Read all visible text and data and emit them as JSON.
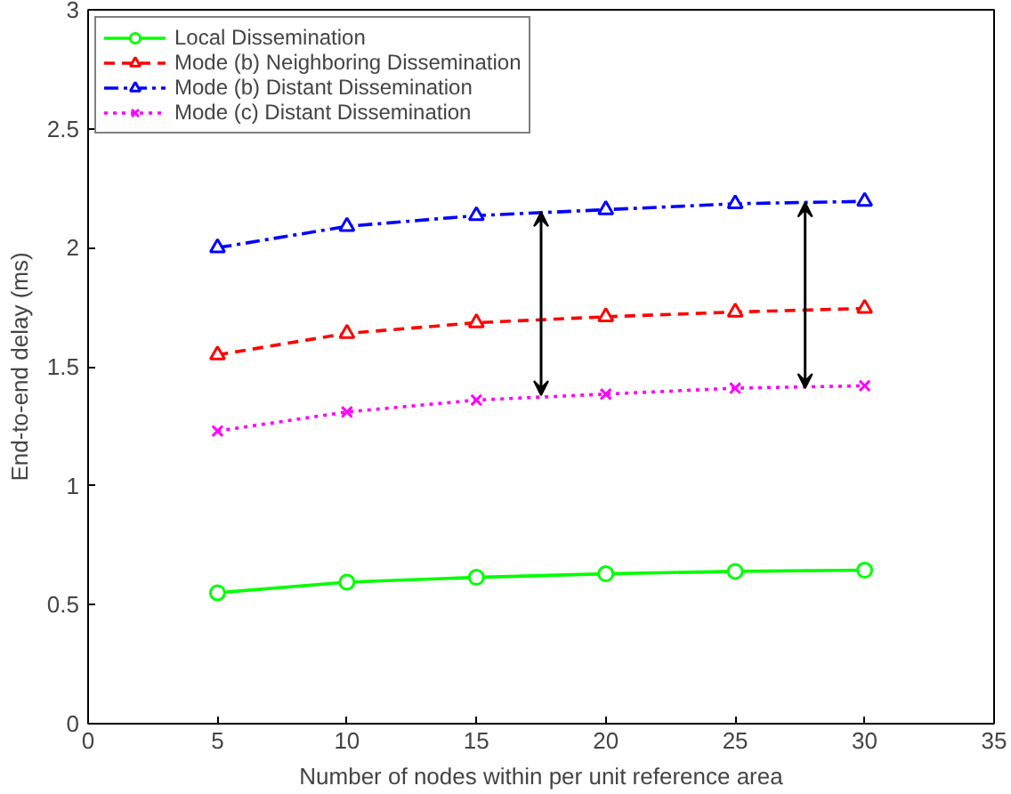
{
  "chart_data": {
    "type": "line",
    "xlabel": "Number of nodes within per unit reference area",
    "ylabel": "End-to-end delay (ms)",
    "x": [
      5,
      10,
      15,
      20,
      25,
      30
    ],
    "series": [
      {
        "name": "Local Dissemination",
        "color": "#00ff00",
        "marker": "circle",
        "line_style": "solid",
        "values": [
          0.55,
          0.595,
          0.615,
          0.63,
          0.64,
          0.645
        ]
      },
      {
        "name": "Mode (b) Neighboring Dissemination",
        "color": "#ff0000",
        "marker": "triangle",
        "line_style": "dashed",
        "values": [
          1.55,
          1.64,
          1.685,
          1.71,
          1.73,
          1.745
        ]
      },
      {
        "name": "Mode (b) Distant Dissemination",
        "color": "#0000ff",
        "marker": "triangle",
        "line_style": "dashdot",
        "values": [
          2.0,
          2.09,
          2.135,
          2.16,
          2.185,
          2.195
        ]
      },
      {
        "name": "Mode (c) Distant Dissemination",
        "color": "#ff00ff",
        "marker": "cross",
        "line_style": "dotted",
        "values": [
          1.23,
          1.31,
          1.36,
          1.385,
          1.41,
          1.42
        ]
      }
    ],
    "xlim": [
      0,
      35
    ],
    "ylim": [
      0,
      3
    ],
    "xticks": [
      0,
      5,
      10,
      15,
      20,
      25,
      30,
      35
    ],
    "yticks": [
      0,
      0.5,
      1,
      1.5,
      2,
      2.5,
      3
    ],
    "grid": false,
    "legend": "top left"
  }
}
